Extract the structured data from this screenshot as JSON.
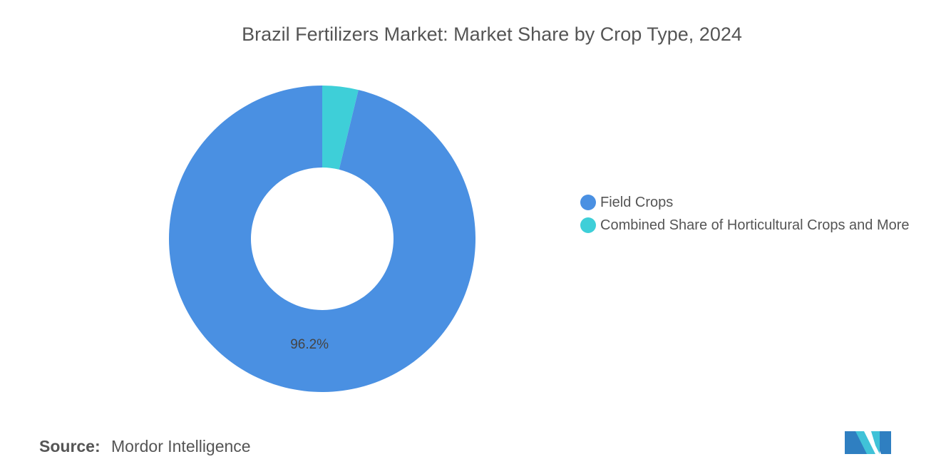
{
  "chart_data": {
    "type": "donut",
    "title": "Brazil Fertilizers Market: Market Share by Crop Type, 2024",
    "categories": [
      "Field Crops",
      "Combined Share of Horticultural Crops and More"
    ],
    "values": [
      96.2,
      3.8
    ],
    "value_labels": [
      "96.2%",
      null
    ],
    "colors": [
      "#4a90e2",
      "#3ecfd8"
    ],
    "legend": "right",
    "source_label": "Source:",
    "source": "Mordor Intelligence"
  }
}
